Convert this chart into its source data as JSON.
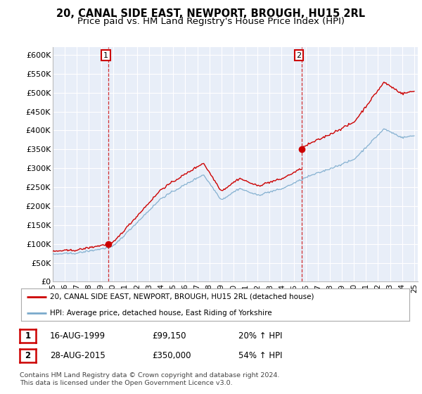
{
  "title": "20, CANAL SIDE EAST, NEWPORT, BROUGH, HU15 2RL",
  "subtitle": "Price paid vs. HM Land Registry's House Price Index (HPI)",
  "legend_line1": "20, CANAL SIDE EAST, NEWPORT, BROUGH, HU15 2RL (detached house)",
  "legend_line2": "HPI: Average price, detached house, East Riding of Yorkshire",
  "footnote": "Contains HM Land Registry data © Crown copyright and database right 2024.\nThis data is licensed under the Open Government Licence v3.0.",
  "table_row1": [
    "1",
    "16-AUG-1999",
    "£99,150",
    "20% ↑ HPI"
  ],
  "table_row2": [
    "2",
    "28-AUG-2015",
    "£350,000",
    "54% ↑ HPI"
  ],
  "purchase1_date": 1999.62,
  "purchase1_price": 99150,
  "purchase2_date": 2015.65,
  "purchase2_price": 350000,
  "ylim": [
    0,
    620000
  ],
  "xlim": [
    1995.0,
    2025.3
  ],
  "chart_bg": "#e8eef8",
  "background_color": "#ffffff",
  "grid_color": "#ffffff",
  "red_color": "#cc0000",
  "blue_color": "#7aaacc",
  "title_fontsize": 10.5,
  "subtitle_fontsize": 9.5,
  "yticks": [
    0,
    50000,
    100000,
    150000,
    200000,
    250000,
    300000,
    350000,
    400000,
    450000,
    500000,
    550000,
    600000
  ],
  "ytick_labels": [
    "£0",
    "£50K",
    "£100K",
    "£150K",
    "£200K",
    "£250K",
    "£300K",
    "£350K",
    "£400K",
    "£450K",
    "£500K",
    "£550K",
    "£600K"
  ]
}
